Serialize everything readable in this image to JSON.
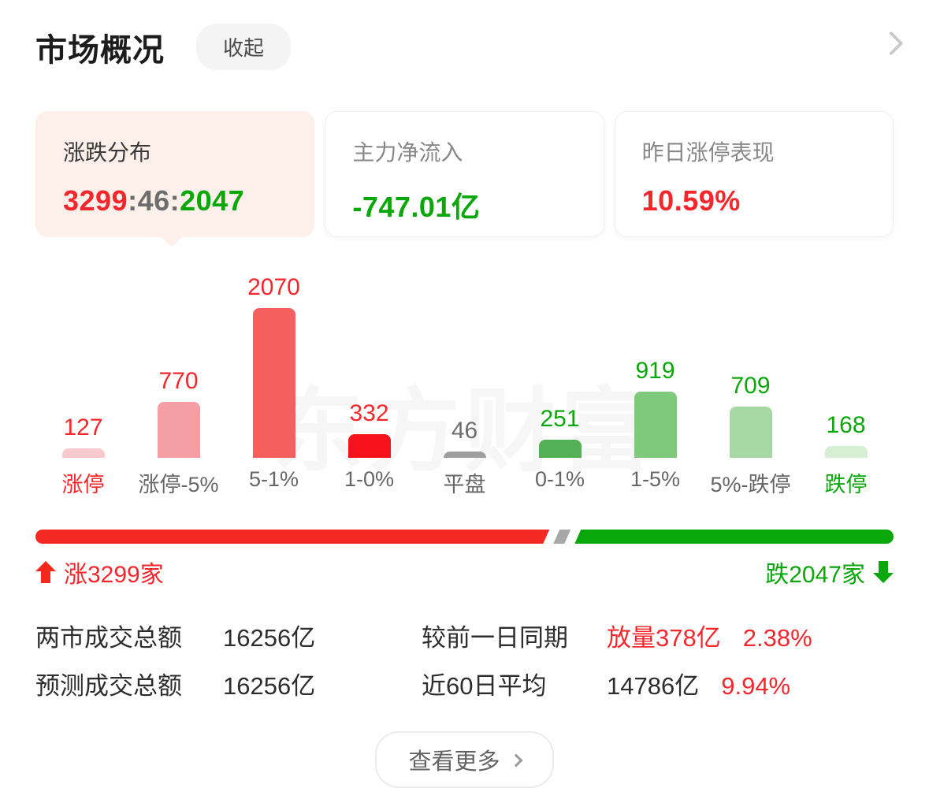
{
  "header": {
    "title": "市场概况",
    "collapse_label": "收起"
  },
  "cards": [
    {
      "label": "涨跌分布",
      "value_up": "3299",
      "value_flat": ":46:",
      "value_down": "2047"
    },
    {
      "label": "主力净流入",
      "value": "-747.01亿"
    },
    {
      "label": "昨日涨停表现",
      "value": "10.59%"
    }
  ],
  "chart_data": {
    "type": "bar",
    "title": "涨跌分布",
    "categories": [
      "涨停",
      "涨停-5%",
      "5-1%",
      "1-0%",
      "平盘",
      "0-1%",
      "1-5%",
      "5%-跌停",
      "跌停"
    ],
    "values": [
      127,
      770,
      2070,
      332,
      46,
      251,
      919,
      709,
      168
    ],
    "bar_colors": [
      "#f8c9cd",
      "#f59fa4",
      "#f5605f",
      "#f5121b",
      "#9e9e9e",
      "#54b054",
      "#7fc97d",
      "#a5d8a3",
      "#d6eed4"
    ],
    "value_label_colors": [
      "#f5272c",
      "#f5272c",
      "#f5272c",
      "#f5272c",
      "#6d6d6d",
      "#0aa70a",
      "#0aa70a",
      "#0aa70a",
      "#0aa70a"
    ],
    "category_label_colors": [
      "#f5272c",
      "#666666",
      "#666666",
      "#666666",
      "#666666",
      "#666666",
      "#666666",
      "#666666",
      "#0aa70a"
    ],
    "grid": false,
    "watermark": "东方财富"
  },
  "ratio_bar": {
    "up": 3299,
    "flat": 46,
    "down": 2047,
    "up_color": "#f42a22",
    "flat_color": "#a7a7a7",
    "down_color": "#09a709"
  },
  "updown": {
    "up_label": "涨3299家",
    "down_label": "跌2047家"
  },
  "stats": {
    "rows": [
      {
        "label_left": "两市成交总额",
        "value_left": "16256亿",
        "label_right": "较前一日同期",
        "value_right_main": "放量378亿",
        "value_right_pct": "2.38%"
      },
      {
        "label_left": "预测成交总额",
        "value_left": "16256亿",
        "label_right": "近60日平均",
        "value_right_main": "14786亿",
        "value_right_pct": "9.94%"
      }
    ]
  },
  "more": {
    "label": "查看更多"
  },
  "colors": {
    "up_red": "#f5272c",
    "down_green": "#0aa70a",
    "active_card_bg": "#fdf0ea"
  }
}
